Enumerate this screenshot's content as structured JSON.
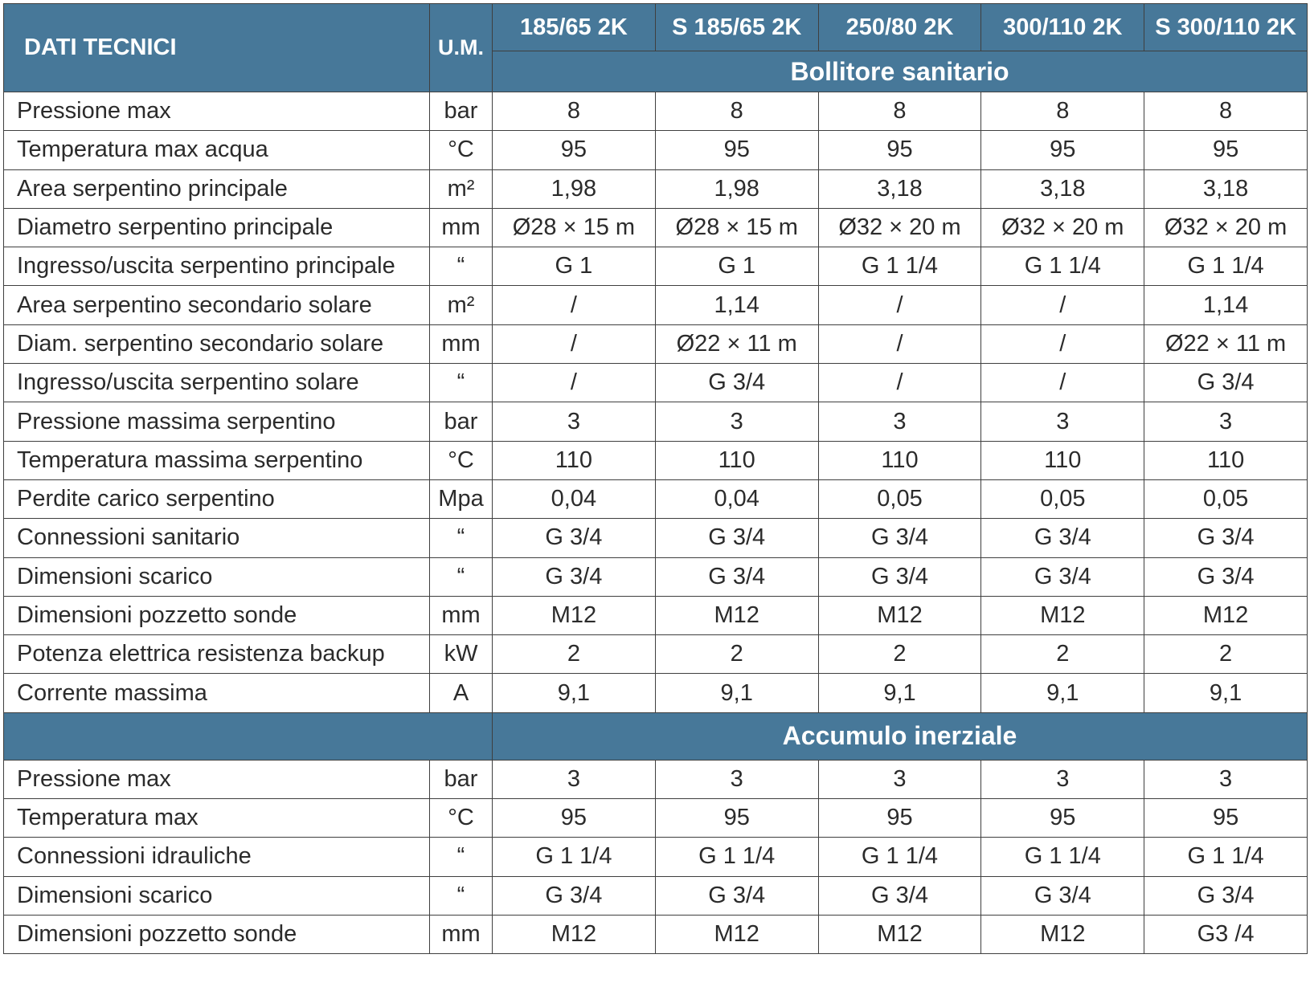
{
  "header": {
    "title": "DATI TECNICI",
    "unit_label": "U.M.",
    "models": [
      "185/65 2K",
      "S 185/65 2K",
      "250/80 2K",
      "300/110 2K",
      "S 300/110 2K"
    ]
  },
  "sections": [
    {
      "title": "Bollitore sanitario",
      "rows": [
        {
          "param": "Pressione max",
          "unit": "bar",
          "values": [
            "8",
            "8",
            "8",
            "8",
            "8"
          ]
        },
        {
          "param": "Temperatura max acqua",
          "unit": "°C",
          "values": [
            "95",
            "95",
            "95",
            "95",
            "95"
          ]
        },
        {
          "param": "Area serpentino principale",
          "unit": "m²",
          "values": [
            "1,98",
            "1,98",
            "3,18",
            "3,18",
            "3,18"
          ]
        },
        {
          "param": "Diametro serpentino principale",
          "unit": "mm",
          "values": [
            "Ø28 × 15 m",
            "Ø28 × 15 m",
            "Ø32 × 20 m",
            "Ø32 × 20 m",
            "Ø32 × 20 m"
          ]
        },
        {
          "param": "Ingresso/uscita serpentino principale",
          "unit": "“",
          "values": [
            "G 1",
            "G 1",
            "G 1 1/4",
            "G 1 1/4",
            "G 1 1/4"
          ]
        },
        {
          "param": "Area serpentino secondario solare",
          "unit": "m²",
          "values": [
            "/",
            "1,14",
            "/",
            "/",
            "1,14"
          ]
        },
        {
          "param": "Diam. serpentino secondario solare",
          "unit": "mm",
          "values": [
            "/",
            "Ø22 × 11 m",
            "/",
            "/",
            "Ø22 × 11 m"
          ]
        },
        {
          "param": "Ingresso/uscita serpentino solare",
          "unit": "“",
          "values": [
            "/",
            "G 3/4",
            "/",
            "/",
            "G 3/4"
          ]
        },
        {
          "param": "Pressione massima serpentino",
          "unit": "bar",
          "values": [
            "3",
            "3",
            "3",
            "3",
            "3"
          ]
        },
        {
          "param": "Temperatura massima serpentino",
          "unit": "°C",
          "values": [
            "110",
            "110",
            "110",
            "110",
            "110"
          ]
        },
        {
          "param": "Perdite carico serpentino",
          "unit": "Mpa",
          "values": [
            "0,04",
            "0,04",
            "0,05",
            "0,05",
            "0,05"
          ]
        },
        {
          "param": "Connessioni sanitario",
          "unit": "“",
          "values": [
            "G 3/4",
            "G 3/4",
            "G 3/4",
            "G 3/4",
            "G 3/4"
          ]
        },
        {
          "param": "Dimensioni scarico",
          "unit": "“",
          "values": [
            "G 3/4",
            "G 3/4",
            "G 3/4",
            "G 3/4",
            "G 3/4"
          ]
        },
        {
          "param": "Dimensioni pozzetto sonde",
          "unit": "mm",
          "values": [
            "M12",
            "M12",
            "M12",
            "M12",
            "M12"
          ]
        },
        {
          "param": "Potenza elettrica resistenza backup",
          "unit": "kW",
          "values": [
            "2",
            "2",
            "2",
            "2",
            "2"
          ]
        },
        {
          "param": "Corrente massima",
          "unit": "A",
          "values": [
            "9,1",
            "9,1",
            "9,1",
            "9,1",
            "9,1"
          ]
        }
      ]
    },
    {
      "title": "Accumulo inerziale",
      "rows": [
        {
          "param": "Pressione max",
          "unit": "bar",
          "values": [
            "3",
            "3",
            "3",
            "3",
            "3"
          ]
        },
        {
          "param": "Temperatura max",
          "unit": "°C",
          "values": [
            "95",
            "95",
            "95",
            "95",
            "95"
          ]
        },
        {
          "param": "Connessioni idrauliche",
          "unit": "“",
          "values": [
            "G 1 1/4",
            "G 1 1/4",
            "G 1 1/4",
            "G 1 1/4",
            "G 1 1/4"
          ]
        },
        {
          "param": "Dimensioni scarico",
          "unit": "“",
          "values": [
            "G 3/4",
            "G 3/4",
            "G 3/4",
            "G 3/4",
            "G 3/4"
          ]
        },
        {
          "param": "Dimensioni pozzetto sonde",
          "unit": "mm",
          "values": [
            "M12",
            "M12",
            "M12",
            "M12",
            "G3 /4"
          ]
        }
      ]
    }
  ]
}
